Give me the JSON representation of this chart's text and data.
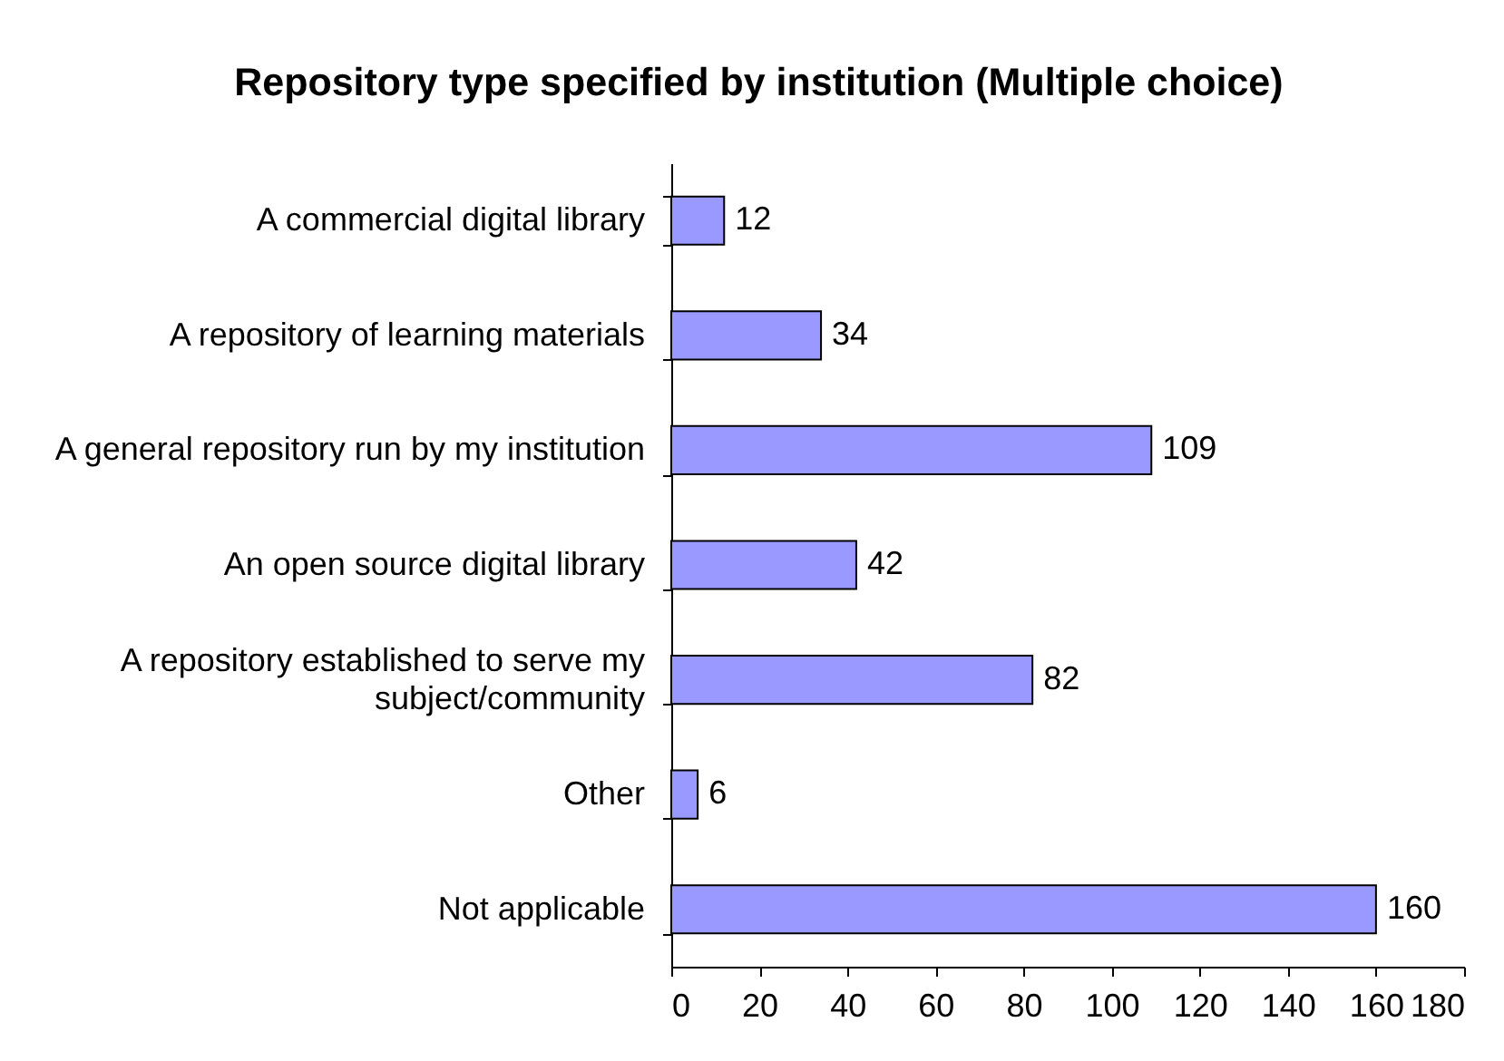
{
  "chart_data": {
    "type": "bar",
    "orientation": "horizontal",
    "title": "Repository type specified by institution (Multiple choice)",
    "categories": [
      "A commercial digital library",
      "A repository of learning materials",
      "A general repository run by my institution",
      "An open source digital library",
      "A repository established to serve my\nsubject/community",
      "Other",
      "Not applicable"
    ],
    "values": [
      12,
      34,
      109,
      42,
      82,
      6,
      160
    ],
    "color": "#9999ff",
    "xlim": [
      0,
      180
    ],
    "xticks": [
      0,
      20,
      40,
      60,
      80,
      100,
      120,
      140,
      160,
      180
    ],
    "grid": false,
    "data_labels": true
  }
}
